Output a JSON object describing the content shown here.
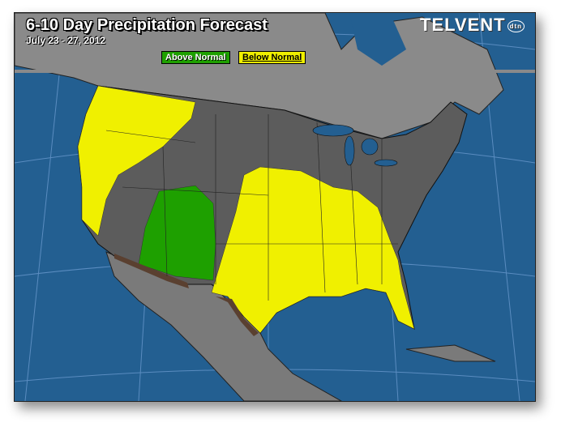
{
  "header": {
    "title": "6-10 Day Precipitation Forecast",
    "date_range": "July 23 - 27, 2012",
    "logo": "TELVENT",
    "logo_badge": "dtn"
  },
  "legend": [
    {
      "label": "Above Normal",
      "color": "#1ea000"
    },
    {
      "label": "Below Normal",
      "color": "#f0f000"
    }
  ],
  "colors": {
    "ocean": "#235f91",
    "land": "#7a7a7a",
    "us_land": "#5c5c5c",
    "above": "#1ea000",
    "below": "#f0f000",
    "border": "#000000"
  }
}
